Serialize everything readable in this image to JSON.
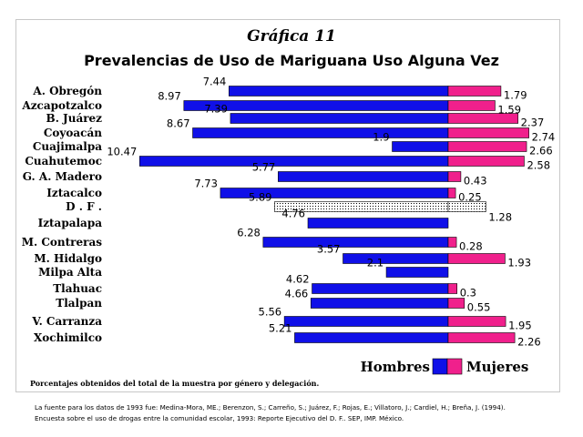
{
  "chart_data": {
    "type": "bar",
    "orientation": "horizontal-diverging",
    "title": "Gráfica 11",
    "subtitle": "Prevalencias de Uso de Mariguana Uso Alguna Vez",
    "categories": [
      "A. Obregón",
      "Azcapotzalco",
      "B. Juárez",
      "Coyoacán",
      "Cuajimalpa",
      "Cuahutemoc",
      "G. A. Madero",
      "Iztacalco",
      "D . F .",
      "Iztapalapa",
      "M. Contreras",
      "M. Hidalgo",
      "Milpa Alta",
      "Tlahuac",
      "Tlalpan",
      "V. Carranza",
      "Xochimilco"
    ],
    "series": [
      {
        "name": "Hombres",
        "color": "#1010e8",
        "values": [
          7.44,
          8.97,
          7.39,
          8.67,
          1.9,
          10.47,
          5.77,
          7.73,
          5.89,
          4.76,
          6.28,
          3.57,
          2.1,
          4.62,
          4.66,
          5.56,
          5.21
        ],
        "labels": [
          "7.44",
          "8.97",
          "7.39",
          "8.67",
          "1.9",
          "10.47",
          "5.77",
          "7.73",
          "5.89",
          "4.76",
          "6.28",
          "3.57",
          "2.1",
          "4.62",
          "4.66",
          "5.56",
          "5.21"
        ]
      },
      {
        "name": "Mujeres",
        "color": "#f0208c",
        "values": [
          1.79,
          1.59,
          2.37,
          2.74,
          2.66,
          2.58,
          0.43,
          0.25,
          1.28,
          null,
          0.28,
          1.93,
          null,
          0.3,
          0.55,
          1.95,
          2.26
        ],
        "labels": [
          "1.79",
          "1.59",
          "2.37",
          "2.74",
          "2.66",
          "2.58",
          "0.43",
          "0.25",
          "1.28",
          "",
          "0.28",
          "1.93",
          "",
          "0.3",
          "0.55",
          "1.95",
          "2.26"
        ]
      }
    ],
    "highlight_category": "D . F .",
    "highlight_fill": "dotted",
    "legend_position": "bottom-right",
    "grid": false
  },
  "footnote": "Porcentajes obtenidos del total de la muestra por género y delegación.",
  "source": {
    "line1": "La fuente para los datos de 1993 fue: Medina-Mora, ME.; Berenzon, S.; Carreño, S.; Juárez, F.; Rojas, E.; Villatoro, J.; Cardiel, H.; Breña, J. (1994).",
    "line2": "Encuesta sobre el uso de drogas entre la comunidad escolar, 1993: Reporte Ejecutivo del D. F.. SEP, IMP. México."
  }
}
